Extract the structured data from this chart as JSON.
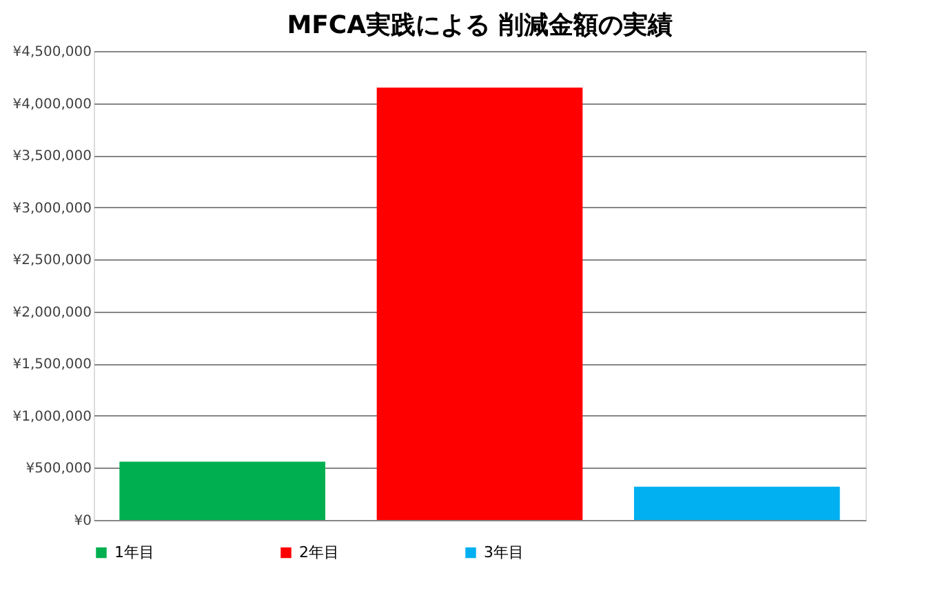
{
  "chart_data": {
    "type": "bar",
    "title": "MFCA実践による  削減金額の実績",
    "categories": [
      null,
      null,
      null
    ],
    "series": [
      {
        "name": "1年目",
        "color": "#00b050",
        "values": [
          560000,
          null,
          null
        ]
      },
      {
        "name": "2年目",
        "color": "#ff0000",
        "values": [
          null,
          4150000,
          null
        ]
      },
      {
        "name": "3年目",
        "color": "#00b0f0",
        "values": [
          null,
          null,
          320000
        ]
      }
    ],
    "ylim": [
      0,
      4500000
    ],
    "yticks": [
      {
        "value": 0,
        "label": "¥0"
      },
      {
        "value": 500000,
        "label": "¥500,000"
      },
      {
        "value": 1000000,
        "label": "¥1,000,000"
      },
      {
        "value": 1500000,
        "label": "¥1,500,000"
      },
      {
        "value": 2000000,
        "label": "¥2,000,000"
      },
      {
        "value": 2500000,
        "label": "¥2,500,000"
      },
      {
        "value": 3000000,
        "label": "¥3,000,000"
      },
      {
        "value": 3500000,
        "label": "¥3,500,000"
      },
      {
        "value": 4000000,
        "label": "¥4,000,000"
      },
      {
        "value": 4500000,
        "label": "¥4,500,000"
      }
    ],
    "grid": "y",
    "legend": "bottom",
    "tick_labels": "y"
  }
}
